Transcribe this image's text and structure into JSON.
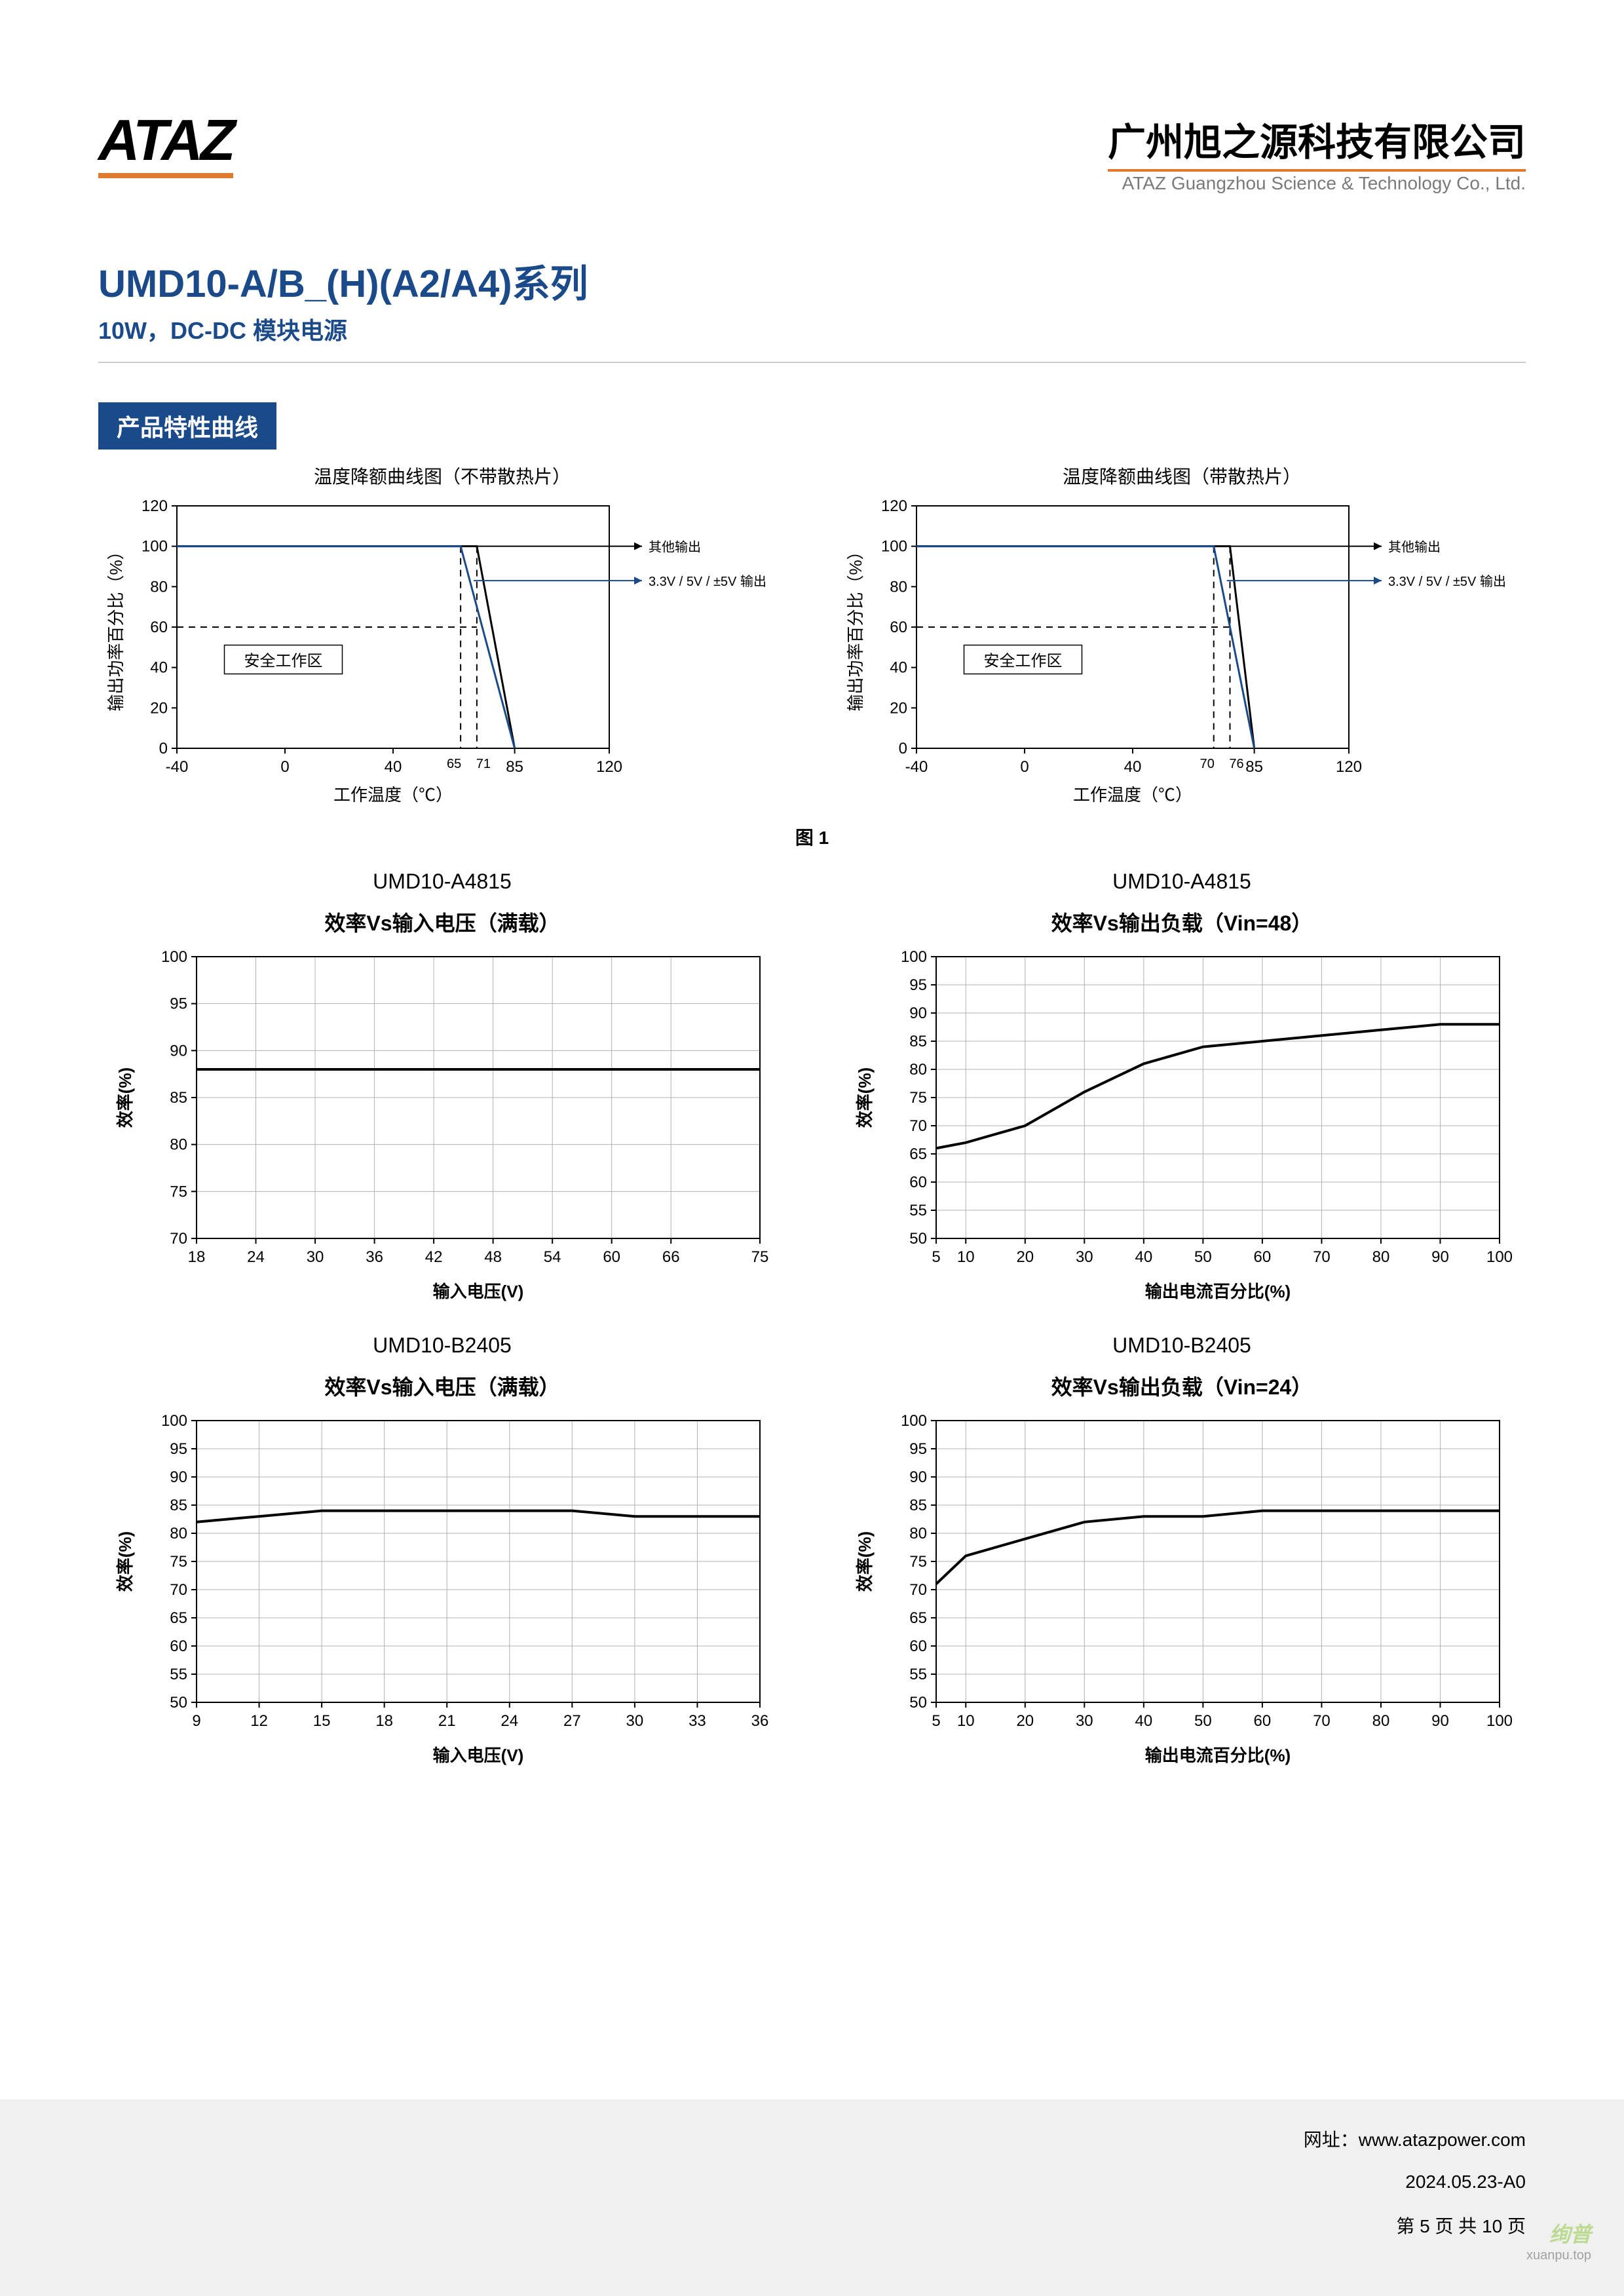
{
  "header": {
    "logo": "ATAZ",
    "company_cn": "广州旭之源科技有限公司",
    "company_en": "ATAZ Guangzhou Science & Technology Co., Ltd."
  },
  "title": {
    "product": "UMD10-A/B_(H)(A2/A4)系列",
    "sub": "10W，DC-DC 模块电源"
  },
  "section_heading": "产品特性曲线",
  "derating": {
    "chart_a": {
      "title": "温度降额曲线图（不带散热片）",
      "ylabel": "输出功率百分比（%）",
      "xlabel": "工作温度（℃）",
      "ylim": [
        0,
        120
      ],
      "ytick_step": 20,
      "xlim": [
        -40,
        120
      ],
      "xticks": [
        -40,
        0,
        40,
        85,
        120
      ],
      "minor_ticks": [
        "65",
        "71"
      ],
      "safe_zone_label": "安全工作区",
      "legend1": "其他输出",
      "legend2": "3.3V / 5V / ±5V 输出",
      "legend1_color": "#000000",
      "legend2_color": "#1a4a8a",
      "series_other": {
        "x": [
          -40,
          71,
          85
        ],
        "y": [
          100,
          100,
          0
        ],
        "color": "#000000"
      },
      "series_5v": {
        "x": [
          -40,
          65,
          85
        ],
        "y": [
          100,
          100,
          0
        ],
        "color": "#1a4a8a"
      },
      "dash_h_y": 60,
      "dash_v_x": [
        65,
        71
      ]
    },
    "chart_b": {
      "title": "温度降额曲线图（带散热片）",
      "ylabel": "输出功率百分比（%）",
      "xlabel": "工作温度（℃）",
      "ylim": [
        0,
        120
      ],
      "ytick_step": 20,
      "xlim": [
        -40,
        120
      ],
      "xticks": [
        -40,
        0,
        40,
        85,
        120
      ],
      "minor_ticks": [
        "70",
        "76"
      ],
      "safe_zone_label": "安全工作区",
      "legend1": "其他输出",
      "legend2": "3.3V / 5V / ±5V 输出",
      "legend1_color": "#000000",
      "legend2_color": "#1a4a8a",
      "series_other": {
        "x": [
          -40,
          76,
          85
        ],
        "y": [
          100,
          100,
          0
        ],
        "color": "#000000"
      },
      "series_5v": {
        "x": [
          -40,
          70,
          85
        ],
        "y": [
          100,
          100,
          0
        ],
        "color": "#1a4a8a"
      },
      "dash_h_y": 60,
      "dash_v_x": [
        70,
        76
      ]
    },
    "fig_label": "图 1"
  },
  "eff": {
    "row1": {
      "left": {
        "model": "UMD10-A4815",
        "title": "效率Vs输入电压（满载）",
        "ylabel": "效率(%)",
        "ylim": [
          70,
          100
        ],
        "ytick_step": 5,
        "xlabel": "输入电压(V)",
        "xlim": [
          18,
          75
        ],
        "xticks": [
          18,
          24,
          30,
          36,
          42,
          48,
          54,
          60,
          66,
          75
        ],
        "data": {
          "x": [
            18,
            24,
            30,
            36,
            42,
            48,
            54,
            60,
            66,
            75
          ],
          "y": [
            88,
            88,
            88,
            88,
            88,
            88,
            88,
            88,
            88,
            88
          ]
        },
        "grid_color": "#b0b0b0",
        "line_color": "#000000",
        "bg": "#ffffff"
      },
      "right": {
        "model": "UMD10-A4815",
        "title": "效率Vs输出负载（Vin=48）",
        "ylabel": "效率(%)",
        "ylim": [
          50,
          100
        ],
        "ytick_step": 5,
        "xlabel": "输出电流百分比(%)",
        "xlim": [
          5,
          100
        ],
        "xticks": [
          5,
          10,
          20,
          30,
          40,
          50,
          60,
          70,
          80,
          90,
          100
        ],
        "data": {
          "x": [
            5,
            10,
            20,
            30,
            40,
            50,
            60,
            70,
            80,
            90,
            100
          ],
          "y": [
            66,
            67,
            70,
            76,
            81,
            84,
            85,
            86,
            87,
            88,
            88
          ]
        },
        "grid_color": "#b0b0b0",
        "line_color": "#000000",
        "bg": "#ffffff"
      }
    },
    "row2": {
      "left": {
        "model": "UMD10-B2405",
        "title": "效率Vs输入电压（满载）",
        "ylabel": "效率(%)",
        "ylim": [
          50,
          100
        ],
        "ytick_step": 5,
        "xlabel": "输入电压(V)",
        "xlim": [
          9,
          36
        ],
        "xticks": [
          9,
          12,
          15,
          18,
          21,
          24,
          27,
          30,
          33,
          36
        ],
        "data": {
          "x": [
            9,
            12,
            15,
            18,
            21,
            24,
            27,
            30,
            33,
            36
          ],
          "y": [
            82,
            83,
            84,
            84,
            84,
            84,
            84,
            83,
            83,
            83
          ]
        },
        "grid_color": "#b0b0b0",
        "line_color": "#000000",
        "bg": "#ffffff"
      },
      "right": {
        "model": "UMD10-B2405",
        "title": "效率Vs输出负载（Vin=24）",
        "ylabel": "效率(%)",
        "ylim": [
          50,
          100
        ],
        "ytick_step": 5,
        "xlabel": "输出电流百分比(%)",
        "xlim": [
          5,
          100
        ],
        "xticks": [
          5,
          10,
          20,
          30,
          40,
          50,
          60,
          70,
          80,
          90,
          100
        ],
        "data": {
          "x": [
            5,
            10,
            20,
            30,
            40,
            50,
            60,
            70,
            80,
            90,
            100
          ],
          "y": [
            71,
            76,
            79,
            82,
            83,
            83,
            84,
            84,
            84,
            84,
            84
          ]
        },
        "grid_color": "#b0b0b0",
        "line_color": "#000000",
        "bg": "#ffffff"
      }
    }
  },
  "footer": {
    "url_label": "网址：",
    "url": "www.atazpower.com",
    "date": "2024.05.23-A0",
    "page": "第 5 页 共 10 页"
  },
  "watermark": {
    "main": "绚普",
    "sub": "xuanpu.top"
  }
}
